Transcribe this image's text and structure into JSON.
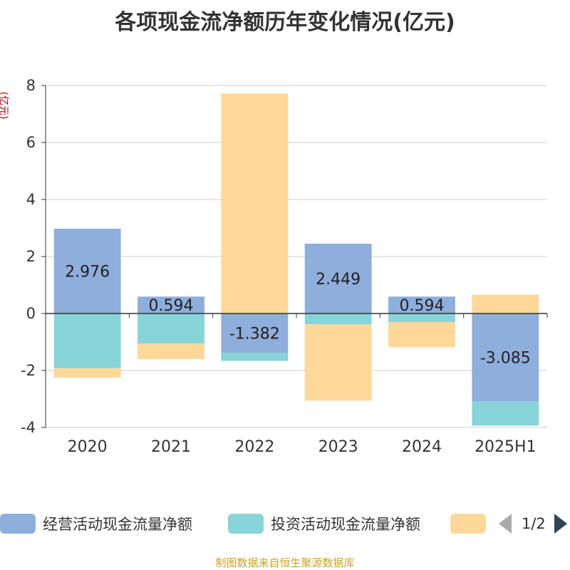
{
  "title": "各项现金流净额历年变化情况(亿元)",
  "unit_label": "(亿元)",
  "source": "制图数据来自恒生聚源数据库",
  "legend": {
    "items": [
      {
        "label": "经营活动现金流量净额",
        "color": "#8eaedb"
      },
      {
        "label": "投资活动现金流量净额",
        "color": "#87d4d9"
      },
      {
        "label": "",
        "color": "#fed898"
      }
    ],
    "page": "1/2"
  },
  "chart_data": {
    "type": "bar",
    "stacked": true,
    "categories": [
      "2020",
      "2021",
      "2022",
      "2023",
      "2024",
      "2025H1"
    ],
    "ylim": [
      -4,
      8
    ],
    "yticks": [
      -4,
      -2,
      0,
      2,
      4,
      6,
      8
    ],
    "ytick_labels": [
      "-4",
      "-2",
      "0",
      "2",
      "4",
      "6",
      "8"
    ],
    "grid": true,
    "series": [
      {
        "name": "经营活动现金流量净额",
        "color": "#8eaedb",
        "values": [
          2.976,
          0.594,
          -1.382,
          2.449,
          0.594,
          -3.085
        ],
        "labels": [
          "2.976",
          "0.594",
          "-1.382",
          "2.449",
          "0.594",
          "-3.085"
        ]
      },
      {
        "name": "投资活动现金流量净额",
        "color": "#87d4d9",
        "values": [
          -1.92,
          -1.05,
          -0.28,
          -0.38,
          -0.3,
          -0.85
        ]
      },
      {
        "color": "#fed898",
        "values": [
          -0.33,
          -0.55,
          7.72,
          -2.68,
          -0.88,
          0.66
        ]
      }
    ]
  }
}
